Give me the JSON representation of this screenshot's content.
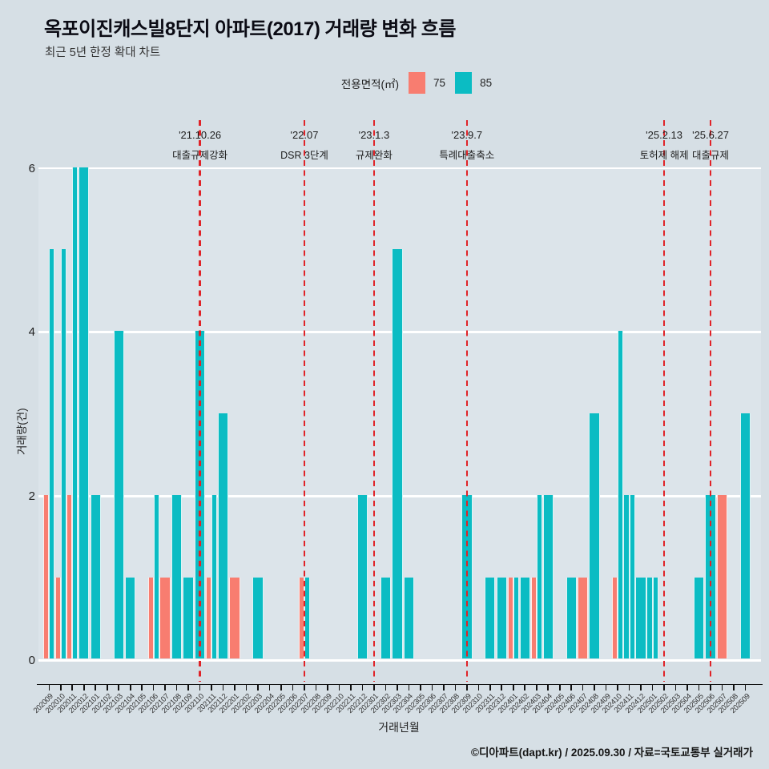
{
  "header": {
    "title": "옥포이진캐스빌8단지 아파트(2017) 거래량 변화 흐름",
    "subtitle": "최근 5년 한정 확대 차트"
  },
  "legend": {
    "label": "전용면적(㎡)",
    "items": [
      {
        "label": "75",
        "color": "#f87d70"
      },
      {
        "label": "85",
        "color": "#0bbcc3"
      }
    ]
  },
  "chart_data": {
    "type": "bar",
    "title": "옥포이진캐스빌8단지 아파트(2017) 거래량 변화 흐름",
    "xlabel": "거래년월",
    "ylabel": "거래량(건)",
    "ylim": [
      0,
      6
    ],
    "yticks": [
      0,
      2,
      4,
      6
    ],
    "grid": "horizontal-white",
    "legend_position": "top-center",
    "categories": [
      "202009",
      "202010",
      "202011",
      "202012",
      "202101",
      "202102",
      "202103",
      "202104",
      "202105",
      "202106",
      "202107",
      "202108",
      "202109",
      "202110",
      "202111",
      "202112",
      "202201",
      "202202",
      "202203",
      "202204",
      "202205",
      "202206",
      "202207",
      "202208",
      "202209",
      "202210",
      "202211",
      "202212",
      "202301",
      "202302",
      "202303",
      "202304",
      "202305",
      "202306",
      "202307",
      "202308",
      "202309",
      "202310",
      "202311",
      "202312",
      "202401",
      "202402",
      "202403",
      "202404",
      "202405",
      "202406",
      "202407",
      "202408",
      "202409",
      "202410",
      "202411",
      "202412",
      "202501",
      "202502",
      "202503",
      "202504",
      "202505",
      "202506",
      "202507",
      "202508",
      "202509"
    ],
    "series": [
      {
        "name": "75",
        "color": "#f87d70",
        "values": [
          2,
          1,
          2,
          0,
          0,
          0,
          0,
          0,
          0,
          1,
          1,
          0,
          0,
          0,
          1,
          0,
          1,
          0,
          0,
          0,
          0,
          0,
          1,
          0,
          0,
          0,
          0,
          0,
          0,
          0,
          0,
          0,
          0,
          0,
          0,
          0,
          0,
          0,
          0,
          0,
          1,
          0,
          1,
          0,
          0,
          0,
          1,
          0,
          0,
          1,
          0,
          0,
          0,
          0,
          0,
          0,
          0,
          0,
          2,
          0,
          0
        ]
      },
      {
        "name": "85",
        "color": "#0bbcc3",
        "values": [
          5,
          5,
          6,
          6,
          2,
          0,
          4,
          1,
          0,
          2,
          0,
          2,
          1,
          4,
          2,
          3,
          0,
          0,
          1,
          0,
          0,
          0,
          1,
          0,
          0,
          0,
          0,
          2,
          0,
          1,
          5,
          1,
          0,
          0,
          0,
          0,
          2,
          0,
          1,
          1,
          1,
          1,
          2,
          2,
          0,
          1,
          0,
          3,
          0,
          4,
          2,
          1,
          1,
          0,
          0,
          0,
          1,
          2,
          0,
          0,
          3
        ],
        "split_months": [
          "202411",
          "202501"
        ]
      }
    ],
    "events": [
      {
        "date": "'21.10.26",
        "label": "대출규제강화",
        "month": "202110"
      },
      {
        "date": "'22.07",
        "label": "DSR 3단계",
        "month": "202207"
      },
      {
        "date": "'23.1.3",
        "label": "규제완화",
        "month": "202301"
      },
      {
        "date": "'23.9.7",
        "label": "특례대출축소",
        "month": "202309"
      },
      {
        "date": "'25.2.13",
        "label": "토허제 해제",
        "month": "202502"
      },
      {
        "date": "'25.6.27",
        "label": "대출규제",
        "month": "202506"
      }
    ],
    "event_line_color": "#e02328"
  },
  "footer": {
    "credit": "©디아파트(dapt.kr) / 2025.09.30 / 자료=국토교통부 실거래가"
  }
}
